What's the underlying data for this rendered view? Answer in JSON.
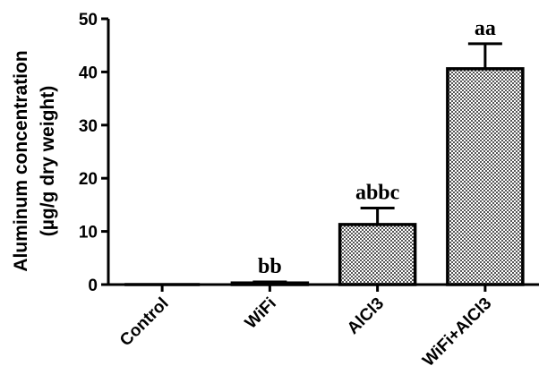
{
  "chart_data": {
    "type": "bar",
    "categories": [
      "Control",
      "WiFi",
      "AlCl3",
      "WiFi+AlCl3"
    ],
    "values": [
      0,
      0.3,
      11.3,
      40.6
    ],
    "errors": [
      0,
      0.2,
      3.1,
      4.7
    ],
    "significance_labels": [
      "",
      "bb",
      "abbc",
      "aa"
    ],
    "ylabel_lines": [
      "Aluminum concentration",
      "(µg/g dry weight)"
    ],
    "xlabel": "",
    "ylim": [
      0,
      50
    ],
    "yticks": [
      0,
      10,
      20,
      30,
      40,
      50
    ],
    "grid": false,
    "bar_fill": "checkered",
    "colors": {
      "bar_pattern_dark": "#555555",
      "bar_pattern_light": "#ffffff",
      "axis": "#000000"
    }
  }
}
